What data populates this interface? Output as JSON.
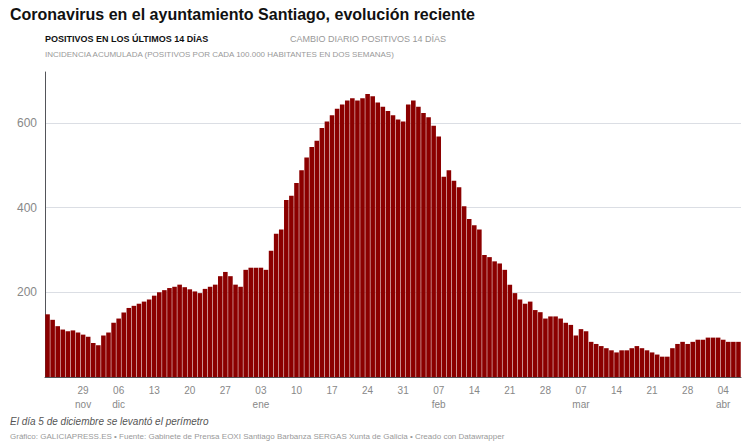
{
  "chart_data": {
    "type": "bar",
    "title": "Coronavirus en el ayuntamiento Santiago, evolución reciente",
    "tabs": [
      "POSITIVOS EN LOS ÚLTIMOS 14 DÍAS",
      "CAMBIO DIARIO POSITIVOS 14 DÍAS",
      "INCIDENCIA ACUMULADA (POSITIVOS POR CADA 100.000 HABITANTES EN DOS SEMANAS)"
    ],
    "footnotes": [
      "El día 5 de diciembre se levantó el perímetro",
      "Gráfico: GALICIAPRESS.ES • Fuente: Gabinete de Prensa EOXI Santiago Barbanza SERGAS Xunta de Galicia • Creado con Datawrapper"
    ],
    "categories": [
      null,
      null,
      null,
      null,
      null,
      null,
      null,
      "29",
      null,
      null,
      null,
      null,
      null,
      null,
      "06",
      null,
      null,
      null,
      null,
      null,
      null,
      "13",
      null,
      null,
      null,
      null,
      null,
      null,
      "20",
      null,
      null,
      null,
      null,
      null,
      null,
      "27",
      null,
      null,
      null,
      null,
      null,
      null,
      "03",
      null,
      null,
      null,
      null,
      null,
      null,
      "10",
      null,
      null,
      null,
      null,
      null,
      null,
      "17",
      null,
      null,
      null,
      null,
      null,
      null,
      "24",
      null,
      null,
      null,
      null,
      null,
      null,
      "31",
      null,
      null,
      null,
      null,
      null,
      null,
      "07",
      null,
      null,
      null,
      null,
      null,
      null,
      "14",
      null,
      null,
      null,
      null,
      null,
      null,
      "21",
      null,
      null,
      null,
      null,
      null,
      null,
      "28",
      null,
      null,
      null,
      null,
      null,
      null,
      "07",
      null,
      null,
      null,
      null,
      null,
      null,
      "14",
      null,
      null,
      null,
      null,
      null,
      null,
      "21",
      null,
      null,
      null,
      null,
      null,
      null,
      "28",
      null,
      null,
      null,
      null,
      null,
      null,
      "04",
      null,
      null,
      null
    ],
    "month_labels": [
      null,
      null,
      null,
      null,
      null,
      null,
      null,
      "nov",
      null,
      null,
      null,
      null,
      null,
      null,
      "dic",
      null,
      null,
      null,
      null,
      null,
      null,
      null,
      null,
      null,
      null,
      null,
      null,
      null,
      null,
      null,
      null,
      null,
      null,
      null,
      null,
      null,
      null,
      null,
      null,
      null,
      null,
      null,
      "ene",
      null,
      null,
      null,
      null,
      null,
      null,
      null,
      null,
      null,
      null,
      null,
      null,
      null,
      null,
      null,
      null,
      null,
      null,
      null,
      null,
      null,
      null,
      null,
      null,
      null,
      null,
      null,
      null,
      null,
      null,
      null,
      null,
      null,
      null,
      "feb",
      null,
      null,
      null,
      null,
      null,
      null,
      null,
      null,
      null,
      null,
      null,
      null,
      null,
      null,
      null,
      null,
      null,
      null,
      null,
      null,
      null,
      null,
      null,
      null,
      null,
      null,
      null,
      "mar",
      null,
      null,
      null,
      null,
      null,
      null,
      null,
      null,
      null,
      null,
      null,
      null,
      null,
      null,
      null,
      null,
      null,
      null,
      null,
      null,
      null,
      null,
      null,
      null,
      null,
      null,
      null,
      "abr",
      null,
      null,
      null
    ],
    "values": [
      148,
      135,
      120,
      112,
      108,
      110,
      105,
      100,
      95,
      80,
      75,
      98,
      105,
      128,
      138,
      152,
      163,
      168,
      173,
      178,
      183,
      192,
      200,
      205,
      210,
      213,
      218,
      212,
      207,
      202,
      198,
      208,
      213,
      218,
      238,
      248,
      238,
      218,
      213,
      253,
      258,
      258,
      258,
      253,
      298,
      338,
      348,
      418,
      428,
      458,
      488,
      518,
      543,
      558,
      588,
      603,
      618,
      633,
      643,
      653,
      658,
      653,
      658,
      668,
      663,
      648,
      638,
      628,
      618,
      608,
      603,
      643,
      653,
      638,
      623,
      613,
      593,
      568,
      473,
      488,
      463,
      448,
      403,
      373,
      358,
      348,
      288,
      283,
      273,
      268,
      253,
      218,
      198,
      183,
      173,
      178,
      158,
      153,
      138,
      143,
      143,
      138,
      128,
      123,
      98,
      113,
      108,
      83,
      78,
      73,
      68,
      63,
      58,
      63,
      63,
      68,
      73,
      68,
      63,
      58,
      53,
      48,
      48,
      68,
      78,
      83,
      78,
      83,
      88,
      88,
      93,
      93,
      93,
      88,
      83,
      83,
      83
    ],
    "color": "#8B0000",
    "ylim": [
      0,
      720
    ],
    "yticks": [
      200,
      400,
      600
    ],
    "grid": true
  }
}
